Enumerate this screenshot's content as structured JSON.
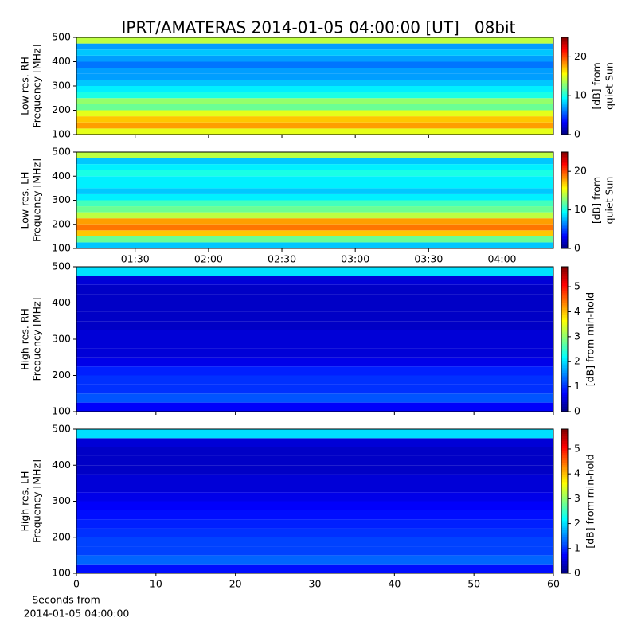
{
  "chart_data": [
    {
      "type": "heatmap",
      "title": "IPRT/AMATERAS 2014-01-05 04:00:00 [UT]   08bit",
      "ylabel": [
        "Low res. RH",
        "Frequency [MHz]"
      ],
      "ylim": [
        100,
        500
      ],
      "yticks": [
        100,
        200,
        300,
        400,
        500
      ],
      "xlim": [
        66,
        261
      ],
      "xticks": [
        {
          "value": 90,
          "label": "01:30"
        },
        {
          "value": 120,
          "label": "02:00"
        },
        {
          "value": 150,
          "label": "02:30"
        },
        {
          "value": 180,
          "label": "03:00"
        },
        {
          "value": 210,
          "label": "03:30"
        },
        {
          "value": 240,
          "label": "04:00"
        }
      ],
      "xtick_labels": false,
      "y": [
        100,
        125,
        150,
        175,
        200,
        225,
        250,
        275,
        300,
        325,
        350,
        375,
        400,
        425,
        450,
        475,
        500
      ],
      "values": [
        15,
        18,
        17,
        15,
        12,
        13,
        10,
        9,
        8,
        7,
        7,
        6,
        7,
        8,
        7,
        14
      ],
      "colormap": "jet",
      "clim": [
        0,
        25
      ],
      "cticks": [
        0,
        10,
        20
      ],
      "clabel": [
        "[dB] from",
        "quiet Sun"
      ]
    },
    {
      "type": "heatmap",
      "ylabel": [
        "Low res. LH",
        "Frequency [MHz]"
      ],
      "ylim": [
        100,
        500
      ],
      "yticks": [
        100,
        200,
        300,
        400,
        500
      ],
      "xlim": [
        66,
        261
      ],
      "xticks": [
        {
          "value": 90,
          "label": "01:30"
        },
        {
          "value": 120,
          "label": "02:00"
        },
        {
          "value": 150,
          "label": "02:30"
        },
        {
          "value": 180,
          "label": "03:00"
        },
        {
          "value": 210,
          "label": "03:30"
        },
        {
          "value": 240,
          "label": "04:00"
        }
      ],
      "xtick_labels": true,
      "y": [
        100,
        125,
        150,
        175,
        200,
        225,
        250,
        275,
        300,
        325,
        350,
        375,
        400,
        425,
        450,
        475,
        500
      ],
      "values": [
        8,
        12,
        17,
        19,
        18,
        14,
        12,
        11,
        9,
        8,
        9,
        9,
        10,
        9,
        8,
        14
      ],
      "colormap": "jet",
      "clim": [
        0,
        25
      ],
      "cticks": [
        0,
        10,
        20
      ],
      "clabel": [
        "[dB] from",
        "quiet Sun"
      ]
    },
    {
      "type": "heatmap",
      "ylabel": [
        "High res. RH",
        "Frequency [MHz]"
      ],
      "ylim": [
        100,
        500
      ],
      "yticks": [
        100,
        200,
        300,
        400,
        500
      ],
      "xlim": [
        0,
        60
      ],
      "xticks": [
        0,
        10,
        20,
        30,
        40,
        50,
        60
      ],
      "xtick_labels": false,
      "y": [
        100,
        125,
        150,
        175,
        200,
        225,
        250,
        275,
        300,
        325,
        350,
        375,
        400,
        425,
        450,
        475,
        500
      ],
      "values": [
        0.7,
        1.2,
        1.0,
        1.0,
        0.9,
        0.6,
        0.5,
        0.5,
        0.5,
        0.4,
        0.4,
        0.4,
        0.4,
        0.4,
        0.5,
        2.0
      ],
      "colormap": "jet",
      "clim": [
        0,
        5.8
      ],
      "cticks": [
        0,
        1,
        2,
        3,
        4,
        5
      ],
      "clabel": [
        "[dB] from min-hold"
      ]
    },
    {
      "type": "heatmap",
      "ylabel": [
        "High res. LH",
        "Frequency [MHz]"
      ],
      "ylim": [
        100,
        500
      ],
      "yticks": [
        100,
        200,
        300,
        400,
        500
      ],
      "xlim": [
        0,
        60
      ],
      "xticks": [
        0,
        10,
        20,
        30,
        40,
        50,
        60
      ],
      "xtick_labels": true,
      "xlabel": [
        "Seconds from",
        "2014-01-05 04:00:00"
      ],
      "y": [
        100,
        125,
        150,
        175,
        200,
        225,
        250,
        275,
        300,
        325,
        350,
        375,
        400,
        425,
        450,
        475,
        500
      ],
      "values": [
        0.8,
        1.3,
        1.1,
        1.1,
        1.0,
        0.9,
        0.8,
        0.7,
        0.6,
        0.5,
        0.5,
        0.4,
        0.4,
        0.4,
        0.5,
        2.0
      ],
      "colormap": "jet",
      "clim": [
        0,
        5.8
      ],
      "cticks": [
        0,
        1,
        2,
        3,
        4,
        5
      ],
      "clabel": [
        "[dB] from min-hold"
      ]
    }
  ]
}
